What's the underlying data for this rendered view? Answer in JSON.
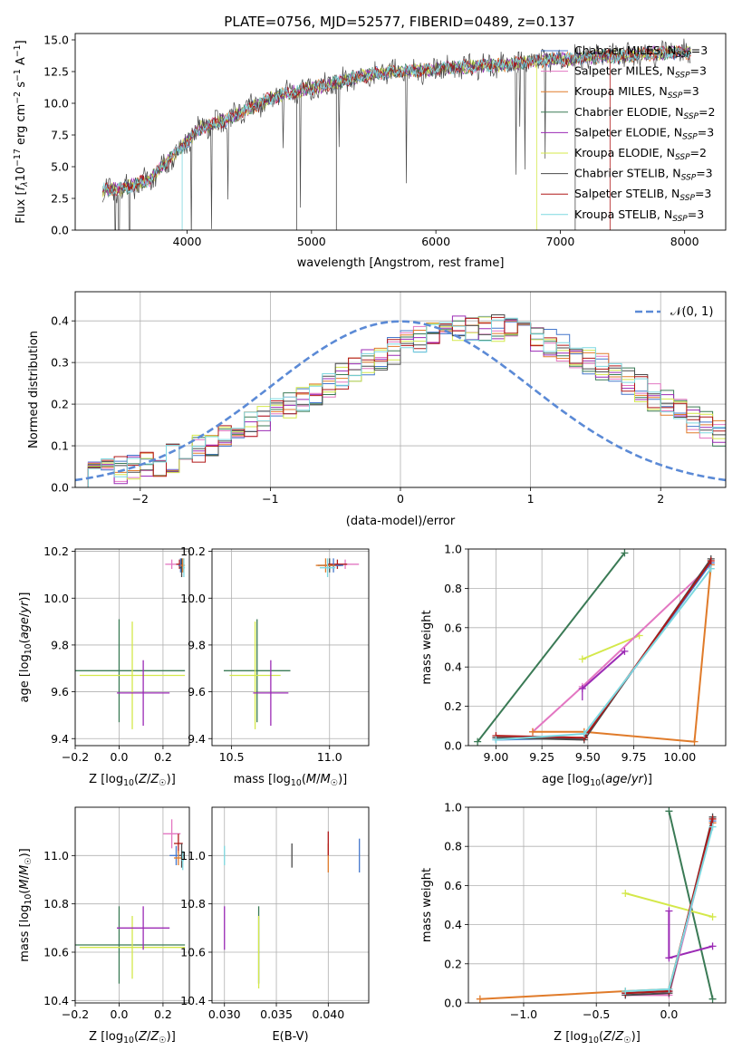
{
  "figure_title": "PLATE=0756, MJD=52577, FIBERID=0489, z=0.137",
  "colors": {
    "chabrier_miles": "#4477cc",
    "salpeter_miles": "#e377c2",
    "kroupa_miles": "#e07b2a",
    "chabrier_elodie": "#3a7a55",
    "salpeter_elodie": "#9b2ab5",
    "kroupa_elodie": "#d4e84a",
    "chabrier_stelib": "#4a4a4a",
    "salpeter_stelib": "#b01818",
    "kroupa_stelib": "#7dd8e0",
    "normal": "#5b8ad6",
    "grid": "#b0b0b0"
  },
  "chart_data": [
    {
      "id": "spectrum",
      "type": "line",
      "xlabel": "wavelength [Angstrom, rest frame]",
      "ylabel": "Flux [f_λ10^-17 erg cm^-2 s^-1 A^-1]",
      "xlim": [
        3100,
        8330
      ],
      "ylim": [
        0,
        15.5
      ],
      "xticks": [
        4000,
        5000,
        6000,
        7000,
        8000
      ],
      "yticks": [
        0.0,
        2.5,
        5.0,
        7.5,
        10.0,
        12.5,
        15.0
      ],
      "grid": false,
      "legend_position": "top-right",
      "continuum": {
        "x": [
          3320,
          3500,
          3700,
          3900,
          4100,
          4300,
          4500,
          4700,
          4900,
          5100,
          5300,
          5500,
          5700,
          5900,
          6100,
          6300,
          6500,
          6700,
          6900,
          7100,
          7300,
          7500,
          7700,
          7900,
          8050
        ],
        "y": [
          3.2,
          3.3,
          4.0,
          6.0,
          8.0,
          8.6,
          9.6,
          10.5,
          11.0,
          11.4,
          11.9,
          12.3,
          12.5,
          12.6,
          12.8,
          12.9,
          13.0,
          13.2,
          13.4,
          13.5,
          13.7,
          13.7,
          13.9,
          14.0,
          14.0
        ]
      },
      "series": [
        {
          "name": "Chabrier MILES, N_SSP=3",
          "color_key": "chabrier_miles"
        },
        {
          "name": "Salpeter MILES, N_SSP=3",
          "color_key": "salpeter_miles"
        },
        {
          "name": "Kroupa MILES, N_SSP=3",
          "color_key": "kroupa_miles"
        },
        {
          "name": "Chabrier ELODIE, N_SSP=2",
          "color_key": "chabrier_elodie"
        },
        {
          "name": "Salpeter ELODIE, N_SSP=3",
          "color_key": "salpeter_elodie"
        },
        {
          "name": "Kroupa ELODIE, N_SSP=2",
          "color_key": "kroupa_elodie"
        },
        {
          "name": "Chabrier STELIB, N_SSP=3",
          "color_key": "chabrier_stelib"
        },
        {
          "name": "Salpeter STELIB, N_SSP=3",
          "color_key": "salpeter_stelib"
        },
        {
          "name": "Kroupa STELIB, N_SSP=3",
          "color_key": "kroupa_stelib"
        }
      ]
    },
    {
      "id": "residuals",
      "type": "histogram",
      "xlabel": "(data-model)/error",
      "ylabel": "Normed distribution",
      "xlim": [
        -2.5,
        2.5
      ],
      "ylim": [
        0,
        0.47
      ],
      "xticks": [
        -2,
        -1,
        0,
        1,
        2
      ],
      "yticks": [
        0.0,
        0.1,
        0.2,
        0.3,
        0.4
      ],
      "grid": true,
      "legend_position": "top-right",
      "normal_curve": {
        "label": "𝒩(0, 1)",
        "color_key": "normal",
        "mean": 0,
        "sigma": 1
      },
      "bin_width": 0.1,
      "bin_start": -2.5,
      "reference_profile": [
        0.03,
        0.033,
        0.038,
        0.043,
        0.048,
        0.054,
        0.06,
        0.07,
        0.08,
        0.092,
        0.105,
        0.118,
        0.132,
        0.147,
        0.163,
        0.18,
        0.195,
        0.212,
        0.232,
        0.25,
        0.268,
        0.285,
        0.3,
        0.315,
        0.33,
        0.342,
        0.355,
        0.365,
        0.375,
        0.38,
        0.385,
        0.385,
        0.383,
        0.378,
        0.37,
        0.36,
        0.348,
        0.335,
        0.32,
        0.305,
        0.29,
        0.272,
        0.255,
        0.236,
        0.218,
        0.2,
        0.182,
        0.165,
        0.148,
        0.132,
        0.118
      ],
      "series_color_keys": [
        "chabrier_miles",
        "salpeter_miles",
        "kroupa_miles",
        "chabrier_elodie",
        "salpeter_elodie",
        "kroupa_elodie",
        "chabrier_stelib",
        "salpeter_stelib",
        "kroupa_stelib"
      ]
    },
    {
      "id": "age_vs_Z",
      "type": "errorbar",
      "xlabel": "Z [log10(Z/Z☉)]",
      "ylabel": "age [log10(age/yr)]",
      "xlim": [
        -0.2,
        0.32
      ],
      "ylim": [
        9.37,
        10.21
      ],
      "xticks": [
        -0.2,
        0.0,
        0.2
      ],
      "yticks": [
        9.4,
        9.6,
        9.8,
        10.0,
        10.2
      ],
      "grid": true,
      "points": [
        {
          "color_key": "chabrier_elodie",
          "x": 0.0,
          "xerr": 0.3,
          "y": 9.69,
          "yerr": 0.22
        },
        {
          "color_key": "kroupa_elodie",
          "x": 0.06,
          "xerr": 0.24,
          "y": 9.67,
          "yerr": 0.23
        },
        {
          "color_key": "salpeter_elodie",
          "x": 0.11,
          "xerr": 0.12,
          "y": 9.595,
          "yerr": 0.14
        },
        {
          "color_key": "salpeter_miles",
          "x": 0.24,
          "xerr": 0.03,
          "y": 10.145,
          "yerr": 0.02
        },
        {
          "color_key": "salpeter_stelib",
          "x": 0.275,
          "xerr": 0.015,
          "y": 10.145,
          "yerr": 0.02
        },
        {
          "color_key": "chabrier_miles",
          "x": 0.28,
          "xerr": 0.01,
          "y": 10.14,
          "yerr": 0.03
        },
        {
          "color_key": "chabrier_stelib",
          "x": 0.285,
          "xerr": 0.01,
          "y": 10.13,
          "yerr": 0.04
        },
        {
          "color_key": "kroupa_miles",
          "x": 0.29,
          "xerr": 0.01,
          "y": 10.14,
          "yerr": 0.03
        },
        {
          "color_key": "kroupa_stelib",
          "x": 0.295,
          "xerr": 0.005,
          "y": 10.13,
          "yerr": 0.04
        }
      ]
    },
    {
      "id": "age_vs_mass",
      "type": "errorbar",
      "xlabel": "mass [log10(M/M☉)]",
      "ylabel": "",
      "xlim": [
        10.4,
        11.2
      ],
      "ylim": [
        9.37,
        10.21
      ],
      "xticks": [
        10.5,
        11.0
      ],
      "yticks": [
        9.4,
        9.6,
        9.8,
        10.0,
        10.2
      ],
      "grid": true,
      "points": [
        {
          "color_key": "chabrier_elodie",
          "x": 10.63,
          "xerr": 0.17,
          "y": 9.69,
          "yerr": 0.22
        },
        {
          "color_key": "kroupa_elodie",
          "x": 10.62,
          "xerr": 0.13,
          "y": 9.67,
          "yerr": 0.23
        },
        {
          "color_key": "salpeter_elodie",
          "x": 10.7,
          "xerr": 0.09,
          "y": 9.595,
          "yerr": 0.14
        },
        {
          "color_key": "salpeter_miles",
          "x": 11.08,
          "xerr": 0.07,
          "y": 10.145,
          "yerr": 0.02
        },
        {
          "color_key": "chabrier_stelib",
          "x": 11.0,
          "xerr": 0.06,
          "y": 10.14,
          "yerr": 0.03
        },
        {
          "color_key": "salpeter_stelib",
          "x": 11.04,
          "xerr": 0.05,
          "y": 10.145,
          "yerr": 0.02
        },
        {
          "color_key": "chabrier_miles",
          "x": 11.02,
          "xerr": 0.05,
          "y": 10.14,
          "yerr": 0.03
        },
        {
          "color_key": "kroupa_miles",
          "x": 10.98,
          "xerr": 0.05,
          "y": 10.14,
          "yerr": 0.03
        },
        {
          "color_key": "kroupa_stelib",
          "x": 10.99,
          "xerr": 0.04,
          "y": 10.13,
          "yerr": 0.04
        }
      ]
    },
    {
      "id": "weight_vs_age",
      "type": "line",
      "xlabel": "age [log10(age/yr)]",
      "ylabel": "mass weight",
      "xlim": [
        8.85,
        10.25
      ],
      "ylim": [
        0,
        1.0
      ],
      "xticks": [
        9.0,
        9.25,
        9.5,
        9.75,
        10.0
      ],
      "yticks": [
        0.0,
        0.2,
        0.4,
        0.6,
        0.8,
        1.0
      ],
      "grid": true,
      "series": [
        {
          "color_key": "chabrier_elodie",
          "points": [
            [
              8.9,
              0.02
            ],
            [
              9.7,
              0.98
            ]
          ]
        },
        {
          "color_key": "kroupa_elodie",
          "points": [
            [
              9.47,
              0.44
            ],
            [
              9.78,
              0.56
            ]
          ]
        },
        {
          "color_key": "salpeter_miles",
          "points": [
            [
              9.2,
              0.07
            ],
            [
              9.47,
              0.3
            ],
            [
              10.17,
              0.92
            ]
          ]
        },
        {
          "color_key": "salpeter_elodie",
          "points": [
            [
              9.47,
              0.29
            ],
            [
              9.7,
              0.48
            ]
          ],
          "errors": [
            [
              9.47,
              0.23,
              0.3
            ]
          ]
        },
        {
          "color_key": "kroupa_miles",
          "points": [
            [
              9.2,
              0.07
            ],
            [
              9.48,
              0.07
            ],
            [
              10.08,
              0.02
            ],
            [
              10.17,
              0.92
            ]
          ]
        },
        {
          "color_key": "chabrier_miles",
          "points": [
            [
              9.0,
              0.03
            ],
            [
              9.48,
              0.04
            ],
            [
              10.17,
              0.93
            ]
          ]
        },
        {
          "color_key": "chabrier_stelib",
          "points": [
            [
              9.0,
              0.04
            ],
            [
              9.48,
              0.03
            ],
            [
              10.17,
              0.95
            ]
          ]
        },
        {
          "color_key": "salpeter_stelib",
          "points": [
            [
              9.0,
              0.05
            ],
            [
              9.48,
              0.04
            ],
            [
              10.17,
              0.94
            ]
          ]
        },
        {
          "color_key": "kroupa_stelib",
          "points": [
            [
              9.0,
              0.03
            ],
            [
              9.48,
              0.06
            ],
            [
              10.17,
              0.9
            ]
          ]
        }
      ]
    },
    {
      "id": "mass_vs_Z",
      "type": "errorbar",
      "xlabel": "Z [log10(Z/Z☉)]",
      "ylabel": "mass [log10(M/M☉)]",
      "xlim": [
        -0.2,
        0.32
      ],
      "ylim": [
        10.39,
        11.2
      ],
      "xticks": [
        -0.2,
        0.0,
        0.2
      ],
      "yticks": [
        10.4,
        10.6,
        10.8,
        11.0
      ],
      "grid": true,
      "points": [
        {
          "color_key": "chabrier_elodie",
          "x": 0.0,
          "xerr": 0.3,
          "y": 10.63,
          "yerr": 0.16
        },
        {
          "color_key": "kroupa_elodie",
          "x": 0.06,
          "xerr": 0.24,
          "y": 10.62,
          "yerr": 0.13
        },
        {
          "color_key": "salpeter_elodie",
          "x": 0.11,
          "xerr": 0.12,
          "y": 10.7,
          "yerr": 0.09
        },
        {
          "color_key": "salpeter_miles",
          "x": 0.24,
          "xerr": 0.04,
          "y": 11.09,
          "yerr": 0.06
        },
        {
          "color_key": "salpeter_stelib",
          "x": 0.27,
          "xerr": 0.02,
          "y": 11.05,
          "yerr": 0.04
        },
        {
          "color_key": "chabrier_miles",
          "x": 0.26,
          "xerr": 0.03,
          "y": 11.0,
          "yerr": 0.04
        },
        {
          "color_key": "kroupa_miles",
          "x": 0.27,
          "xerr": 0.02,
          "y": 10.99,
          "yerr": 0.03
        },
        {
          "color_key": "chabrier_stelib",
          "x": 0.285,
          "xerr": 0.01,
          "y": 11.0,
          "yerr": 0.05
        },
        {
          "color_key": "kroupa_stelib",
          "x": 0.29,
          "xerr": 0.005,
          "y": 10.98,
          "yerr": 0.04
        }
      ]
    },
    {
      "id": "mass_vs_ebv",
      "type": "errorbar",
      "xlabel": "E(B-V)",
      "ylabel": "",
      "xlim": [
        0.0288,
        0.0439
      ],
      "ylim": [
        10.39,
        11.2
      ],
      "xticks": [
        0.03,
        0.035,
        0.04
      ],
      "xtick_labels": [
        "0.030",
        "0.035",
        "0.040"
      ],
      "yticks": [
        10.4,
        10.6,
        10.8,
        11.0
      ],
      "grid": true,
      "points": [
        {
          "color_key": "kroupa_stelib",
          "x": 0.03,
          "y": 11.0,
          "yerr": 0.04
        },
        {
          "color_key": "salpeter_elodie",
          "x": 0.03,
          "y": 10.7,
          "yerr": 0.09
        },
        {
          "color_key": "chabrier_elodie",
          "x": 0.0333,
          "y": 10.63,
          "yerr": 0.16
        },
        {
          "color_key": "kroupa_elodie",
          "x": 0.0333,
          "y": 10.6,
          "yerr": 0.15
        },
        {
          "color_key": "chabrier_stelib",
          "x": 0.0365,
          "y": 11.0,
          "yerr": 0.05
        },
        {
          "color_key": "kroupa_miles",
          "x": 0.04,
          "y": 10.99,
          "yerr": 0.06
        },
        {
          "color_key": "salpeter_stelib",
          "x": 0.04,
          "y": 11.05,
          "yerr": 0.05
        },
        {
          "color_key": "chabrier_miles",
          "x": 0.043,
          "y": 11.0,
          "yerr": 0.07
        }
      ]
    },
    {
      "id": "weight_vs_Z",
      "type": "line",
      "xlabel": "Z [log10(Z/Z☉)]",
      "ylabel": "mass weight",
      "xlim": [
        -1.38,
        0.39
      ],
      "ylim": [
        0,
        1.0
      ],
      "xticks": [
        -1.0,
        -0.5,
        0.0
      ],
      "yticks": [
        0.0,
        0.2,
        0.4,
        0.6,
        0.8,
        1.0
      ],
      "grid": true,
      "series": [
        {
          "color_key": "chabrier_elodie",
          "points": [
            [
              0.0,
              0.98
            ],
            [
              0.3,
              0.02
            ]
          ]
        },
        {
          "color_key": "kroupa_elodie",
          "points": [
            [
              -0.3,
              0.56
            ],
            [
              0.3,
              0.44
            ]
          ]
        },
        {
          "color_key": "salpeter_elodie",
          "points": [
            [
              0.0,
              0.47
            ],
            [
              0.0,
              0.23
            ],
            [
              0.3,
              0.29
            ]
          ]
        },
        {
          "color_key": "salpeter_miles",
          "points": [
            [
              -0.3,
              0.04
            ],
            [
              0.0,
              0.04
            ],
            [
              0.3,
              0.92
            ]
          ]
        },
        {
          "color_key": "kroupa_miles",
          "points": [
            [
              -1.3,
              0.02
            ],
            [
              -0.3,
              0.06
            ],
            [
              0.0,
              0.07
            ],
            [
              0.3,
              0.92
            ]
          ]
        },
        {
          "color_key": "chabrier_miles",
          "points": [
            [
              -0.3,
              0.05
            ],
            [
              0.0,
              0.06
            ],
            [
              0.3,
              0.93
            ]
          ]
        },
        {
          "color_key": "chabrier_stelib",
          "points": [
            [
              -0.3,
              0.04
            ],
            [
              0.0,
              0.05
            ],
            [
              0.3,
              0.95
            ]
          ]
        },
        {
          "color_key": "salpeter_stelib",
          "points": [
            [
              -0.3,
              0.05
            ],
            [
              0.0,
              0.06
            ],
            [
              0.3,
              0.94
            ]
          ]
        },
        {
          "color_key": "kroupa_stelib",
          "points": [
            [
              -0.3,
              0.06
            ],
            [
              0.0,
              0.07
            ],
            [
              0.3,
              0.9
            ]
          ]
        }
      ]
    }
  ]
}
